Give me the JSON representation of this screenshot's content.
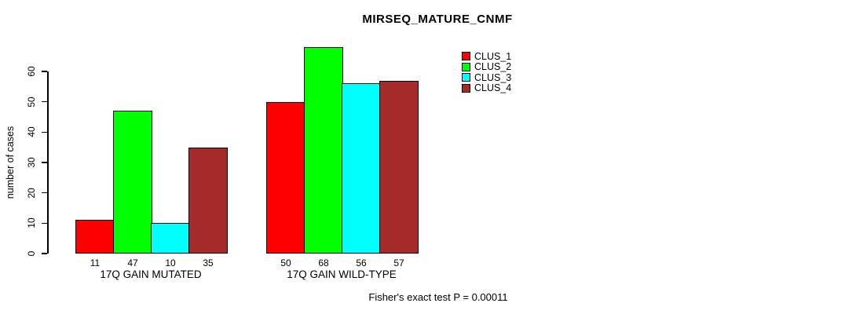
{
  "chart_data": {
    "type": "bar",
    "title": "MIRSEQ_MATURE_CNMF",
    "ylabel": "number of cases",
    "xlabel": "",
    "ylim": [
      0,
      60
    ],
    "yticks": [
      0,
      10,
      20,
      30,
      40,
      50,
      60
    ],
    "grid": false,
    "legend_position": "top-right",
    "categories": [
      "17Q GAIN MUTATED",
      "17Q GAIN WILD-TYPE"
    ],
    "series": [
      {
        "name": "CLUS_1",
        "color": "#ff0000",
        "values": [
          11,
          50
        ]
      },
      {
        "name": "CLUS_2",
        "color": "#00ff00",
        "values": [
          47,
          68
        ]
      },
      {
        "name": "CLUS_3",
        "color": "#00ffff",
        "values": [
          10,
          56
        ]
      },
      {
        "name": "CLUS_4",
        "color": "#a52a2a",
        "values": [
          35,
          57
        ]
      }
    ],
    "bar_value_labels_shown": true,
    "annotation": "Fisher's exact test P = 0.00011"
  }
}
